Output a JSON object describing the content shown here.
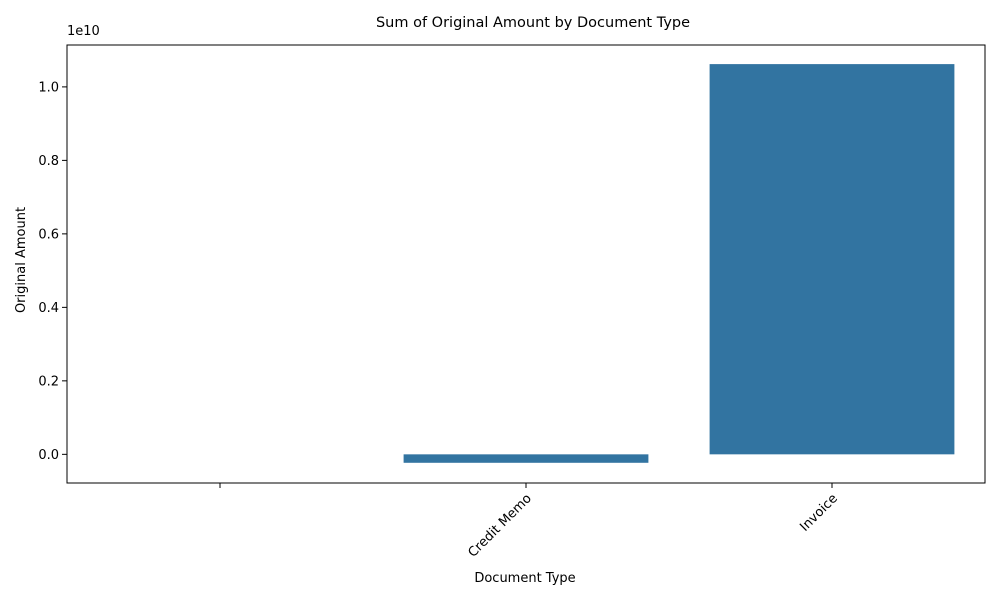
{
  "chart_data": {
    "type": "bar",
    "title": "Sum of Original Amount by Document Type",
    "xlabel": "Document Type",
    "ylabel": "Original Amount",
    "offset_text": "1e10",
    "categories": [
      "",
      "Credit Memo",
      "Invoice"
    ],
    "values": [
      0,
      -230000000,
      10620000000
    ],
    "ylim": [
      -780000000,
      11140000000
    ],
    "yticks": [
      0,
      2000000000,
      4000000000,
      6000000000,
      8000000000,
      10000000000
    ],
    "ytick_labels": [
      "0.0",
      "0.2",
      "0.4",
      "0.6",
      "0.8",
      "1.0"
    ],
    "bar_color": "#3274a1",
    "grid": false,
    "xtick_rotation": 45
  }
}
